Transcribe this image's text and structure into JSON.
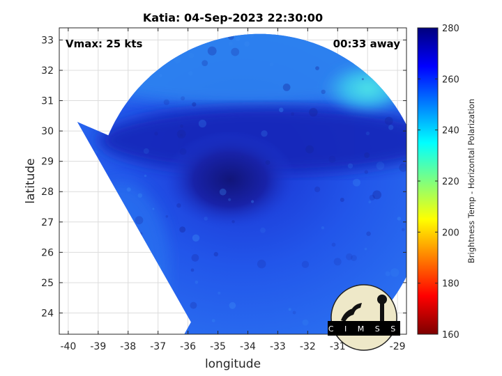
{
  "chart_data": {
    "type": "heatmap",
    "title": "Katia: 04-Sep-2023 22:30:00",
    "xlabel": "longitude",
    "ylabel": "latitude",
    "xlim": [
      -40.3,
      -28.7
    ],
    "ylim": [
      23.3,
      33.4
    ],
    "x_ticks": [
      -40,
      -39,
      -38,
      -37,
      -36,
      -35,
      -34,
      -33,
      -32,
      -31,
      -30,
      -29
    ],
    "y_ticks": [
      24,
      25,
      26,
      27,
      28,
      29,
      30,
      31,
      32,
      33
    ],
    "grid": true,
    "annotations": {
      "top_left": "Vmax: 25 kts",
      "top_right": "00:33 away"
    },
    "colorbar": {
      "label": "Brightness Temp - Horizontal Polarization",
      "range": [
        160,
        280
      ],
      "ticks": [
        160,
        180,
        200,
        220,
        240,
        260,
        280
      ]
    },
    "features": {
      "storm_center_lon": -34.6,
      "storm_center_lat": 28.4,
      "swath_center_lon": -33.6,
      "swath_center_lat": 27.7,
      "swath_radius_deg": 5.5
    },
    "logo": {
      "text": "CIMSS"
    }
  },
  "colors": {
    "plot_background": "#ffffff",
    "dark_blue": "#10147a",
    "deep_blue": "#1d3fe0",
    "mid_blue": "#2a72f2",
    "light_blue": "#3ab4f3"
  }
}
